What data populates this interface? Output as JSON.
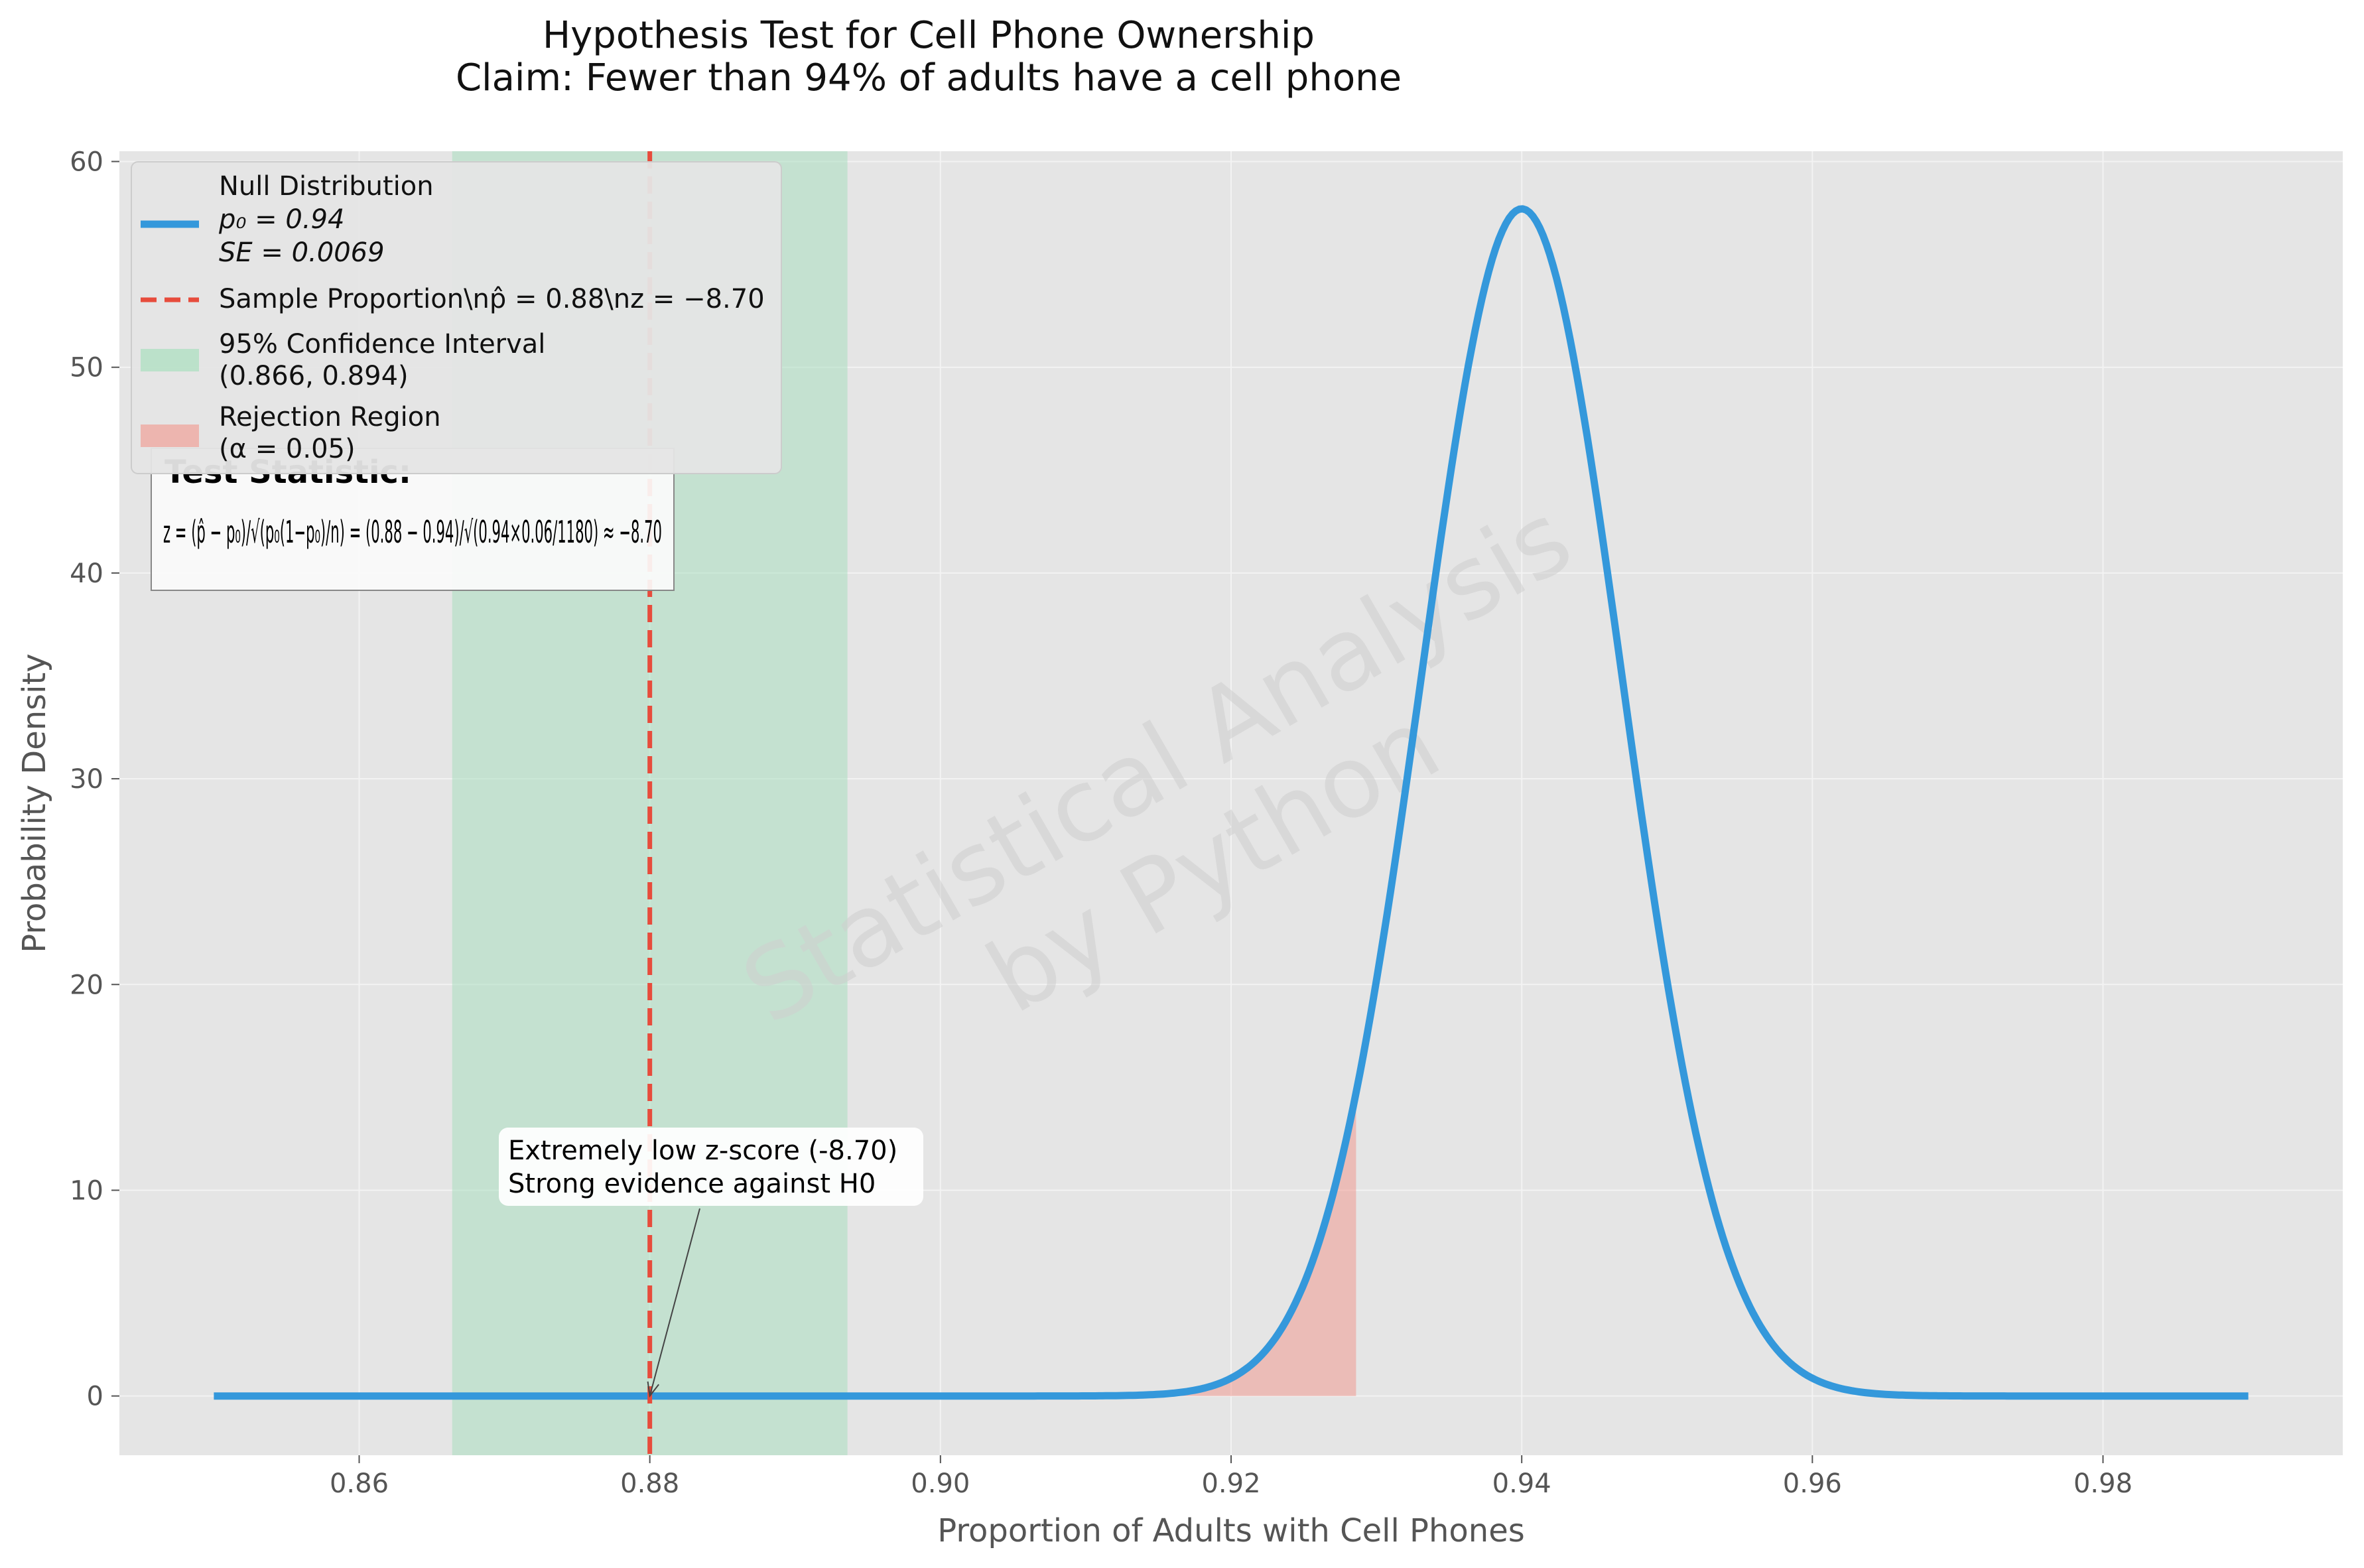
{
  "figure": {
    "title_line1": "Hypothesis Test for Cell Phone Ownership",
    "title_line2": "Claim: Fewer than 94% of adults have a cell phone",
    "watermark_line1": "Statistical Analysis",
    "watermark_line2": "by Python"
  },
  "colors": {
    "background": "#e5e5e5",
    "grid": "#f3f3f3",
    "null_curve": "#3498db",
    "sample_line": "#e74c3c",
    "ci_fill": "#a9dfbf",
    "rejection_fill": "#f1948a"
  },
  "stats_box": {
    "title": "Test Statistic:",
    "formula_text": "z = (p̂ − p₀)/√(p₀(1−p₀)/n) = (0.88 − 0.94)/√(0.94×0.06/1180) ≈ −8.70"
  },
  "annotation": {
    "line1": "Extremely low z-score (-8.70)",
    "line2": "Strong evidence against H0",
    "target_x": 0.88,
    "target_y": 0
  },
  "legend": {
    "null_line1": "Null Distribution",
    "null_line2": "p₀ = 0.94",
    "null_line3": "SE = 0.0069",
    "sample": "Sample Proportion\\np̂ = 0.88\\nz = −8.70",
    "ci_line1": "95% Confidence Interval",
    "ci_line2": "(0.866, 0.894)",
    "rr_line1": "Rejection Region",
    "rr_line2": "(α = 0.05)"
  },
  "chart_data": {
    "type": "line",
    "xlabel": "Proportion of Adults with Cell Phones",
    "ylabel": "Probability Density",
    "xlim": [
      0.8435,
      0.9965
    ],
    "ylim": [
      -2.88,
      60.5
    ],
    "xticks": [
      0.86,
      0.88,
      0.9,
      0.92,
      0.94,
      0.96,
      0.98
    ],
    "xtick_labels": [
      "0.86",
      "0.88",
      "0.90",
      "0.92",
      "0.94",
      "0.96",
      "0.98"
    ],
    "yticks": [
      0,
      10,
      20,
      30,
      40,
      50,
      60
    ],
    "ytick_labels": [
      "0",
      "10",
      "20",
      "30",
      "40",
      "50",
      "60"
    ],
    "grid": true,
    "legend_position": "upper-left",
    "null_distribution": {
      "name": "Null Distribution",
      "mean": 0.94,
      "se": 0.0069,
      "x_range": [
        0.85,
        0.99
      ],
      "peak_density": 57.7
    },
    "sample_proportion": {
      "x": 0.88,
      "z": -8.7
    },
    "confidence_interval": {
      "lower": 0.8664,
      "upper": 0.8936,
      "label": "(0.866, 0.894)"
    },
    "rejection_region": {
      "alpha": 0.05,
      "from": 0.85,
      "to": 0.9286
    }
  }
}
